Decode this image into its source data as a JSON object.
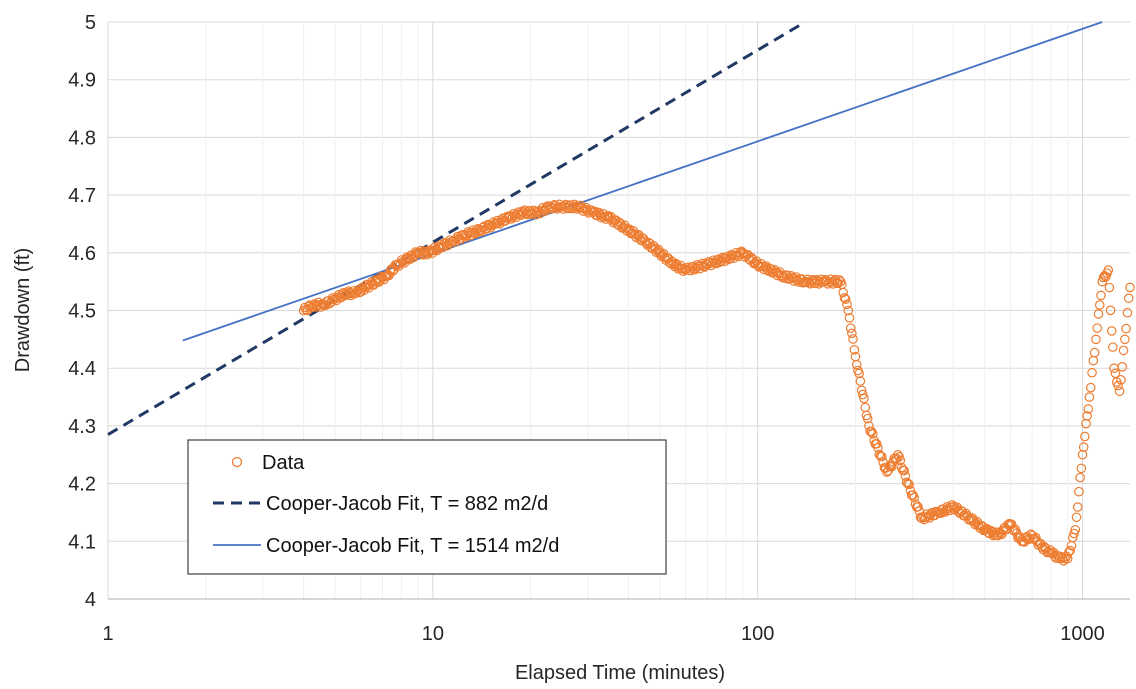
{
  "chart_data": {
    "type": "scatter",
    "xscale": "log",
    "xlim": [
      1,
      1400
    ],
    "ylim": [
      4,
      5
    ],
    "grid": true,
    "legend_position": "bottom-left",
    "xlabel": "Elapsed Time (minutes)",
    "ylabel": "Drawdown (ft)",
    "x_ticks": [
      1,
      10,
      100,
      1000
    ],
    "x_tick_labels": [
      "1",
      "10",
      "100",
      "1000"
    ],
    "y_ticks": [
      4,
      4.1,
      4.2,
      4.3,
      4.4,
      4.5,
      4.6,
      4.7,
      4.8,
      4.9,
      5
    ],
    "y_tick_labels": [
      "4",
      "4.1",
      "4.2",
      "4.3",
      "4.4",
      "4.5",
      "4.6",
      "4.7",
      "4.8",
      "4.9",
      "5"
    ],
    "series": [
      {
        "name": "Data",
        "kind": "markers",
        "marker": "open-circle",
        "color": "#ED7D31",
        "x": [
          4,
          4.3,
          4.6,
          5,
          5.4,
          5.8,
          6.2,
          6.7,
          7.2,
          7.8,
          8.4,
          9,
          9.7,
          10.5,
          11.5,
          12.5,
          14,
          15.5,
          17,
          19,
          21,
          23,
          25,
          28,
          31,
          35,
          40,
          45,
          50,
          55,
          60,
          70,
          80,
          90,
          100,
          120,
          140,
          160,
          180,
          190,
          200,
          220,
          250,
          270,
          290,
          320,
          360,
          400,
          450,
          500,
          550,
          600,
          650,
          700,
          750,
          800,
          850,
          900,
          950,
          1000,
          1050,
          1100,
          1150,
          1200,
          1250,
          1300,
          1350,
          1400
        ],
        "y": [
          4.5,
          4.51,
          4.51,
          4.52,
          4.53,
          4.53,
          4.54,
          4.55,
          4.56,
          4.58,
          4.59,
          4.6,
          4.6,
          4.61,
          4.62,
          4.63,
          4.64,
          4.65,
          4.66,
          4.67,
          4.67,
          4.68,
          4.68,
          4.68,
          4.67,
          4.66,
          4.64,
          4.62,
          4.6,
          4.58,
          4.57,
          4.58,
          4.59,
          4.6,
          4.58,
          4.56,
          4.55,
          4.55,
          4.55,
          4.5,
          4.42,
          4.3,
          4.22,
          4.25,
          4.2,
          4.14,
          4.15,
          4.16,
          4.14,
          4.12,
          4.11,
          4.13,
          4.1,
          4.11,
          4.09,
          4.08,
          4.07,
          4.07,
          4.12,
          4.25,
          4.35,
          4.45,
          4.55,
          4.57,
          4.4,
          4.36,
          4.45,
          4.54
        ]
      },
      {
        "name": "Cooper-Jacob Fit, T = 882 m2/d",
        "kind": "line",
        "dash": "dashed",
        "color": "#203864",
        "x": [
          1,
          140
        ],
        "y": [
          4.285,
          5
        ]
      },
      {
        "name": "Cooper-Jacob Fit, T = 1514 m2/d",
        "kind": "line",
        "dash": "solid",
        "color": "#4472C4",
        "x": [
          1.7,
          1150
        ],
        "y": [
          4.448,
          5
        ]
      }
    ]
  }
}
